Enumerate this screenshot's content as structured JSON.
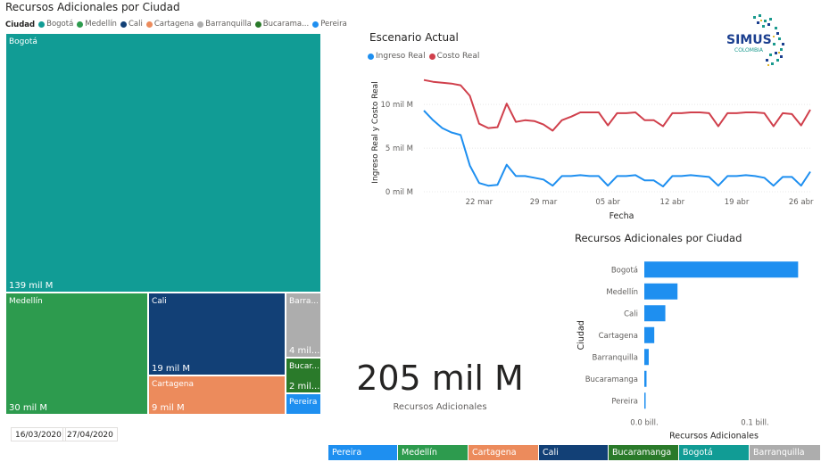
{
  "treemap": {
    "title": "Recursos Adicionales por Ciudad",
    "legend_title": "Ciudad",
    "legend": [
      {
        "label": "Bogotá",
        "color": "#119c95"
      },
      {
        "label": "Medellín",
        "color": "#2d9b4e"
      },
      {
        "label": "Cali",
        "color": "#124076"
      },
      {
        "label": "Cartagena",
        "color": "#ec8b5c"
      },
      {
        "label": "Barranquilla",
        "color": "#adadad"
      },
      {
        "label": "Bucarama...",
        "color": "#2a7a2a"
      },
      {
        "label": "Pereira",
        "color": "#1e8ff0"
      }
    ],
    "tiles": [
      {
        "label": "Bogotá",
        "value_label": "139 mil M",
        "color": "#119c95"
      },
      {
        "label": "Medellín",
        "value_label": "30 mil M",
        "color": "#2d9b4e"
      },
      {
        "label": "Cali",
        "value_label": "19 mil M",
        "color": "#124076"
      },
      {
        "label": "Cartagena",
        "value_label": "9 mil M",
        "color": "#ec8b5c"
      },
      {
        "label": "Barra...",
        "value_label": "4 mil...",
        "color": "#adadad"
      },
      {
        "label": "Bucar...",
        "value_label": "2 mil...",
        "color": "#2a7a2a"
      },
      {
        "label": "Pereira",
        "value_label": "",
        "color": "#1e8ff0"
      }
    ]
  },
  "date_range": {
    "start": "16/03/2020",
    "end": "27/04/2020"
  },
  "logo": {
    "text": "SIMUS",
    "subtext": "COLOMBIA"
  },
  "kpi": {
    "value": "205 mil M",
    "label": "Recursos Adicionales"
  },
  "slicer": [
    {
      "label": "Pereira",
      "color": "#1e8ff0"
    },
    {
      "label": "Medellín",
      "color": "#2d9b4e"
    },
    {
      "label": "Cartagena",
      "color": "#ec8b5c"
    },
    {
      "label": "Cali",
      "color": "#124076"
    },
    {
      "label": "Bucaramanga",
      "color": "#2a7a2a"
    },
    {
      "label": "Bogotá",
      "color": "#119c95"
    },
    {
      "label": "Barranquilla",
      "color": "#adadad"
    }
  ],
  "chart_data": [
    {
      "type": "line",
      "title": "Escenario Actual",
      "xlabel": "Fecha",
      "ylabel": "Ingreso Real y Costo Real",
      "x_ticks": [
        "22 mar",
        "29 mar",
        "05 abr",
        "12 abr",
        "19 abr",
        "26 abr"
      ],
      "y_ticks": [
        "0 mil M",
        "5 mil M",
        "10 mil M"
      ],
      "ylim": [
        0,
        14
      ],
      "legend_position": "top-left",
      "x": [
        "2020-03-16",
        "2020-03-17",
        "2020-03-18",
        "2020-03-19",
        "2020-03-20",
        "2020-03-21",
        "2020-03-22",
        "2020-03-23",
        "2020-03-24",
        "2020-03-25",
        "2020-03-26",
        "2020-03-27",
        "2020-03-28",
        "2020-03-29",
        "2020-03-30",
        "2020-03-31",
        "2020-04-01",
        "2020-04-02",
        "2020-04-03",
        "2020-04-04",
        "2020-04-05",
        "2020-04-06",
        "2020-04-07",
        "2020-04-08",
        "2020-04-09",
        "2020-04-10",
        "2020-04-11",
        "2020-04-12",
        "2020-04-13",
        "2020-04-14",
        "2020-04-15",
        "2020-04-16",
        "2020-04-17",
        "2020-04-18",
        "2020-04-19",
        "2020-04-20",
        "2020-04-21",
        "2020-04-22",
        "2020-04-23",
        "2020-04-24",
        "2020-04-25",
        "2020-04-26",
        "2020-04-27"
      ],
      "series": [
        {
          "name": "Ingreso Real",
          "color": "#1e8ff0",
          "values": [
            9.3,
            8.2,
            7.3,
            6.8,
            6.5,
            3.0,
            1.0,
            0.7,
            0.8,
            3.1,
            1.8,
            1.8,
            1.6,
            1.4,
            0.7,
            1.8,
            1.8,
            1.9,
            1.8,
            1.8,
            0.7,
            1.8,
            1.8,
            1.9,
            1.3,
            1.3,
            0.6,
            1.8,
            1.8,
            1.9,
            1.8,
            1.7,
            0.7,
            1.8,
            1.8,
            1.9,
            1.8,
            1.6,
            0.7,
            1.7,
            1.7,
            0.7,
            2.3
          ]
        },
        {
          "name": "Costo Real",
          "color": "#d0404c",
          "values": [
            12.8,
            12.6,
            12.5,
            12.4,
            12.2,
            11.0,
            7.8,
            7.3,
            7.4,
            10.1,
            8.0,
            8.2,
            8.1,
            7.7,
            7.0,
            8.2,
            8.6,
            9.1,
            9.1,
            9.1,
            7.6,
            9.0,
            9.0,
            9.1,
            8.2,
            8.2,
            7.5,
            9.0,
            9.0,
            9.1,
            9.1,
            9.0,
            7.5,
            9.0,
            9.0,
            9.1,
            9.1,
            9.0,
            7.5,
            9.0,
            8.9,
            7.6,
            9.4
          ]
        }
      ]
    },
    {
      "type": "bar",
      "orientation": "horizontal",
      "title": "Recursos Adicionales por Ciudad",
      "xlabel": "Recursos Adicionales",
      "ylabel": "Ciudad",
      "categories": [
        "Bogotá",
        "Medellín",
        "Cali",
        "Cartagena",
        "Barranquilla",
        "Bucaramanga",
        "Pereira"
      ],
      "values": [
        0.139,
        0.03,
        0.019,
        0.009,
        0.004,
        0.002,
        0.001
      ],
      "x_ticks": [
        {
          "value": 0.0,
          "label": "0.0 bill."
        },
        {
          "value": 0.1,
          "label": "0.1 bill."
        }
      ],
      "xlim": [
        0,
        0.15
      ],
      "color": "#1e8ff0"
    }
  ]
}
